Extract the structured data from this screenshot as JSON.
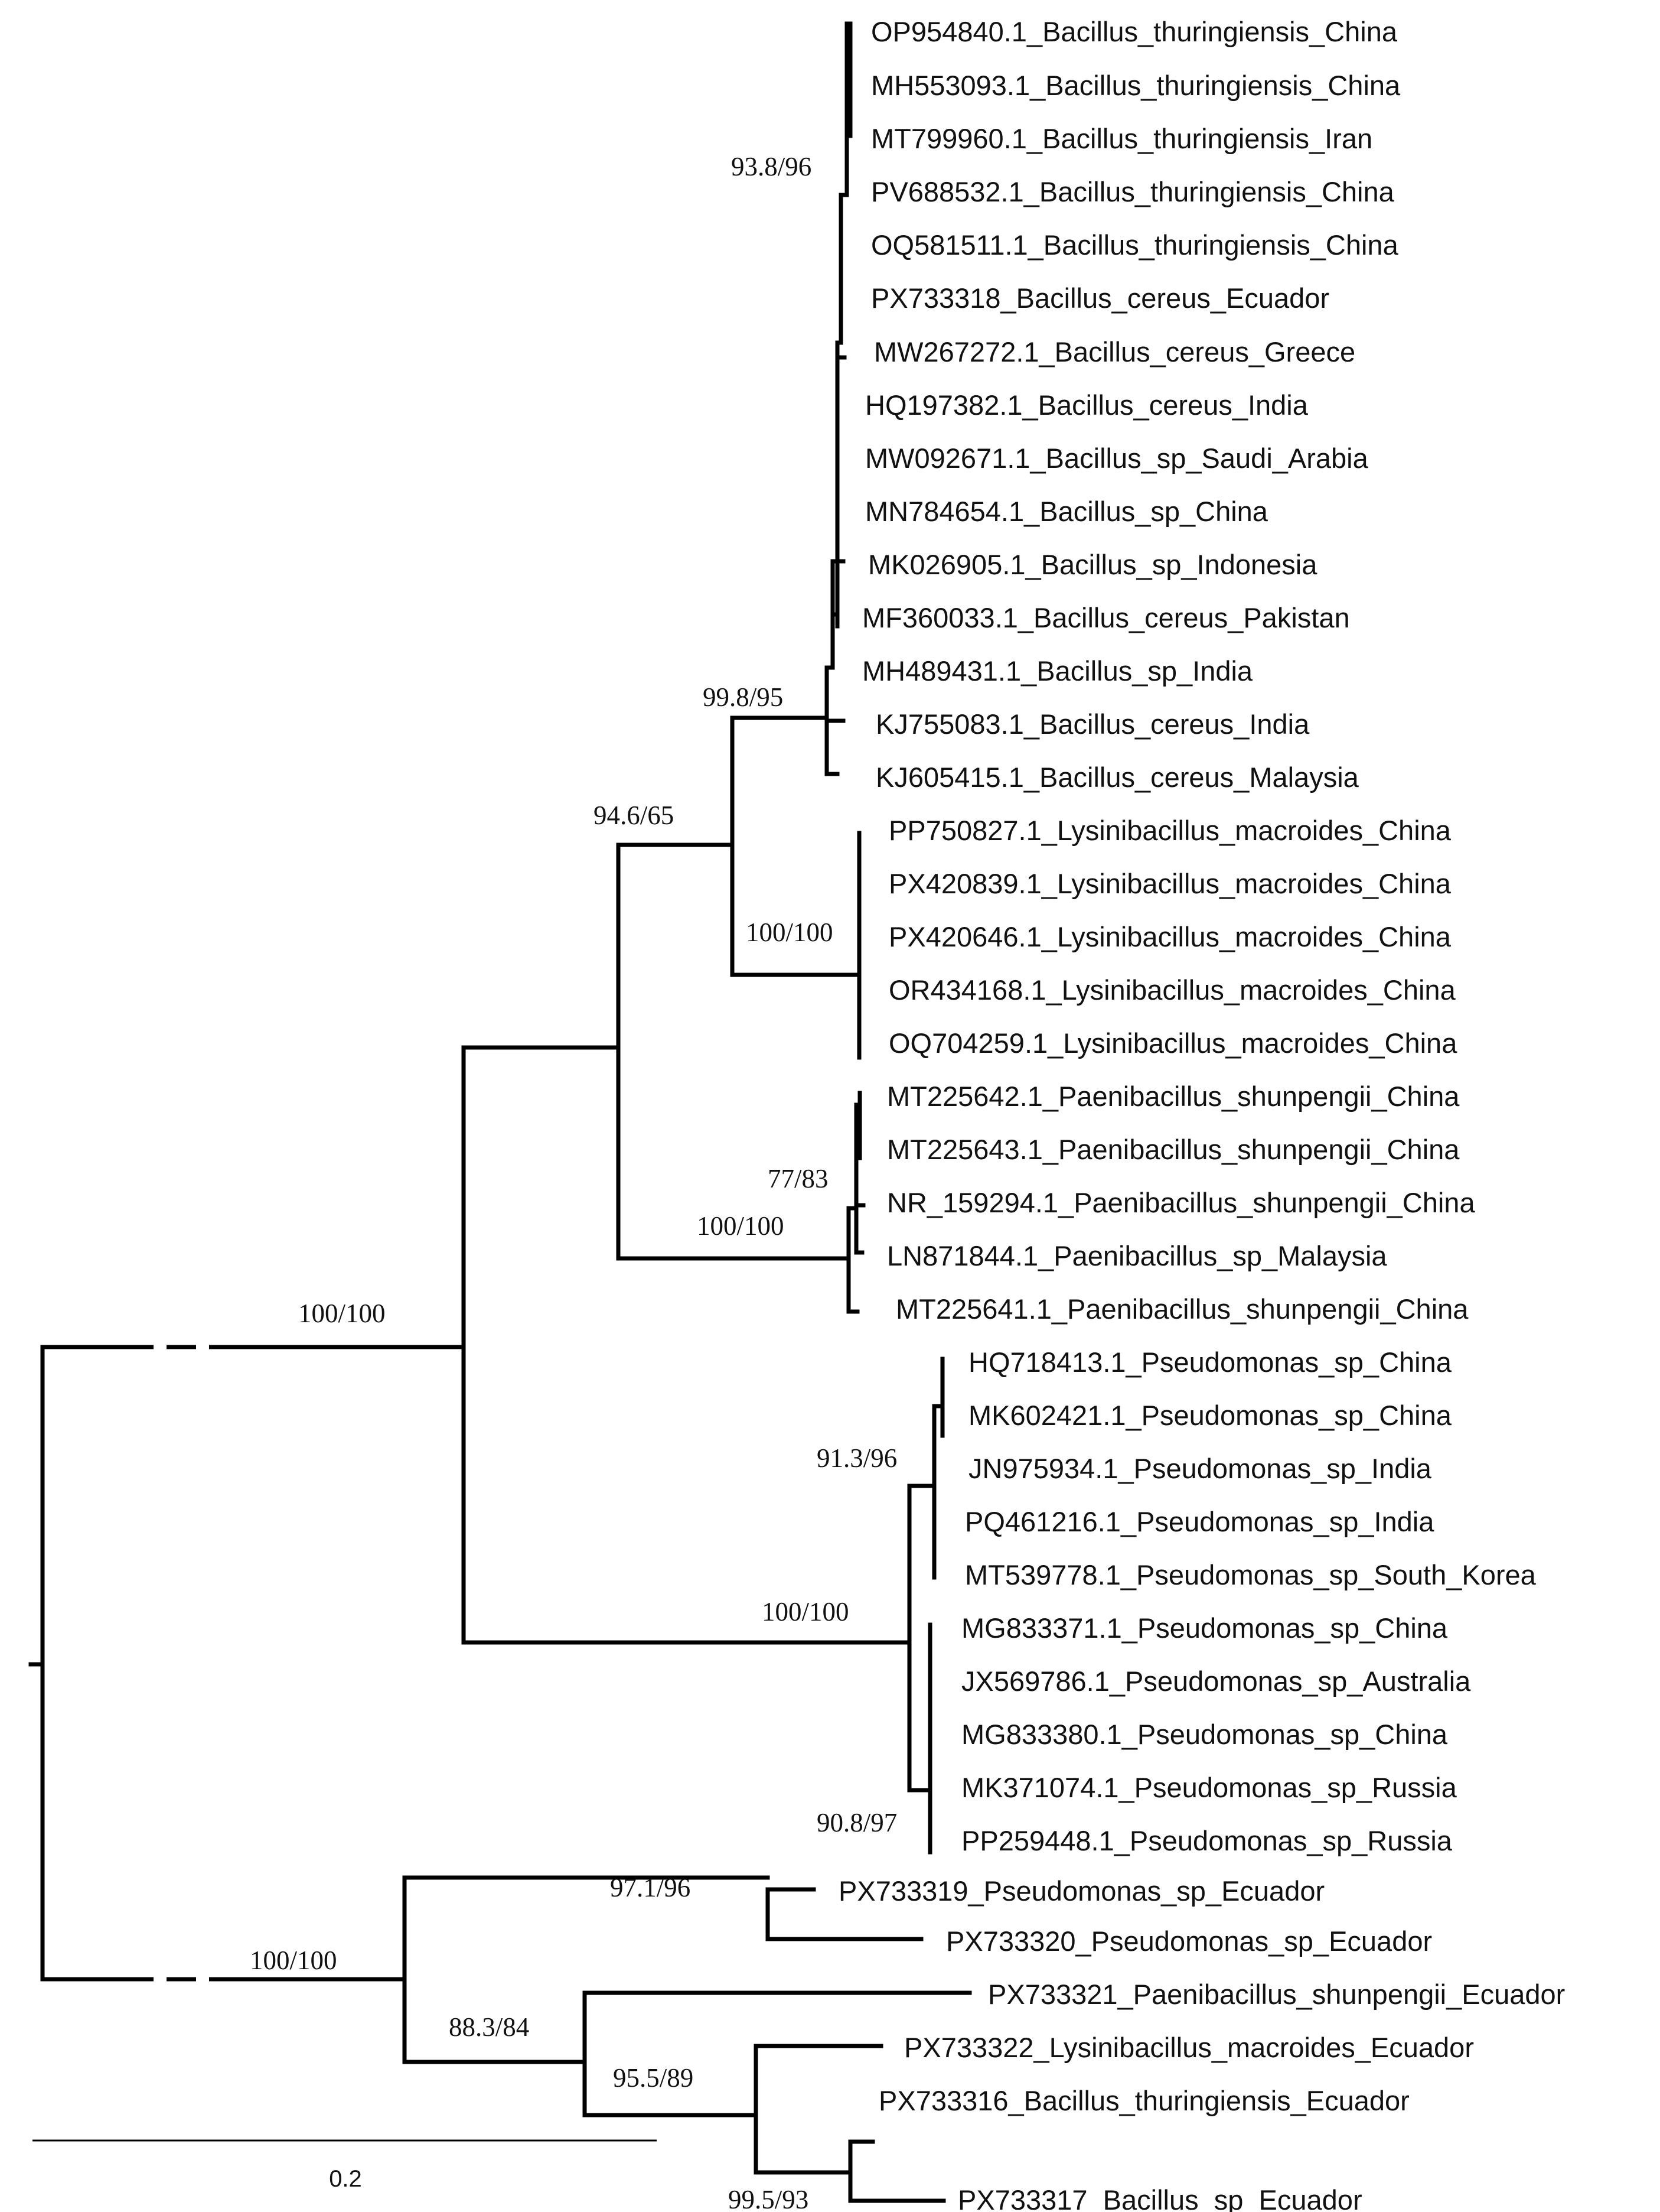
{
  "taxa": [
    "OP954840.1_Bacillus_thuringiensis_China",
    "MH553093.1_Bacillus_thuringiensis_China",
    "MT799960.1_Bacillus_thuringiensis_Iran",
    "PV688532.1_Bacillus_thuringiensis_China",
    "OQ581511.1_Bacillus_thuringiensis_China",
    "PX733318_Bacillus_cereus_Ecuador",
    "MW267272.1_Bacillus_cereus_Greece",
    "HQ197382.1_Bacillus_cereus_India",
    "MW092671.1_Bacillus_sp_Saudi_Arabia",
    "MN784654.1_Bacillus_sp_China",
    "MK026905.1_Bacillus_sp_Indonesia",
    "MF360033.1_Bacillus_cereus_Pakistan",
    "MH489431.1_Bacillus_sp_India",
    "KJ755083.1_Bacillus_cereus_India",
    "KJ605415.1_Bacillus_cereus_Malaysia",
    "PP750827.1_Lysinibacillus_macroides_China",
    "PX420839.1_Lysinibacillus_macroides_China",
    "PX420646.1_Lysinibacillus_macroides_China",
    "OR434168.1_Lysinibacillus_macroides_China",
    "OQ704259.1_Lysinibacillus_macroides_China",
    "MT225642.1_Paenibacillus_shunpengii_China",
    "MT225643.1_Paenibacillus_shunpengii_China",
    "NR_159294.1_Paenibacillus_shunpengii_China",
    "LN871844.1_Paenibacillus_sp_Malaysia",
    "MT225641.1_Paenibacillus_shunpengii_China",
    "HQ718413.1_Pseudomonas_sp_China",
    "MK602421.1_Pseudomonas_sp_China",
    "JN975934.1_Pseudomonas_sp_India",
    "PQ461216.1_Pseudomonas_sp_India",
    "MT539778.1_Pseudomonas_sp_South_Korea",
    "MG833371.1_Pseudomonas_sp_China",
    "JX569786.1_Pseudomonas_sp_Australia",
    "MG833380.1_Pseudomonas_sp_China",
    "MK371074.1_Pseudomonas_sp_Russia",
    "PP259448.1_Pseudomonas_sp_Russia",
    "PX733319_Pseudomonas_sp_Ecuador",
    "PX733320_Pseudomonas_sp_Ecuador",
    "PX733321_Paenibacillus_shunpengii_Ecuador",
    "PX733322_Lysinibacillus_macroides_Ecuador",
    "PX733316_Bacillus_thuringiensis_Ecuador",
    "PX733317_Bacillus_sp_Ecuador"
  ],
  "support": {
    "bacillus_inner": "93.8/96",
    "bacillus_clade": "99.8/95",
    "bacillus_lysinibacillus": "94.6/65",
    "lysinibacillus_clade": "100/100",
    "paenibacillus_inner": "77/83",
    "paenibacillus_clade": "100/100",
    "upper_group": "100/100",
    "pseudomonas_upper": "91.3/96",
    "pseudomonas_clade": "100/100",
    "pseudomonas_lower": "90.8/97",
    "ecuador_pseudomonas": "97.1/96",
    "ecuador_group": "100/100",
    "ecuador_inner": "88.3/84",
    "ecuador_lys_bac": "95.5/89",
    "ecuador_bacillus": "99.5/93"
  },
  "scale_bar": {
    "label": "0.2",
    "value": 0.2
  }
}
